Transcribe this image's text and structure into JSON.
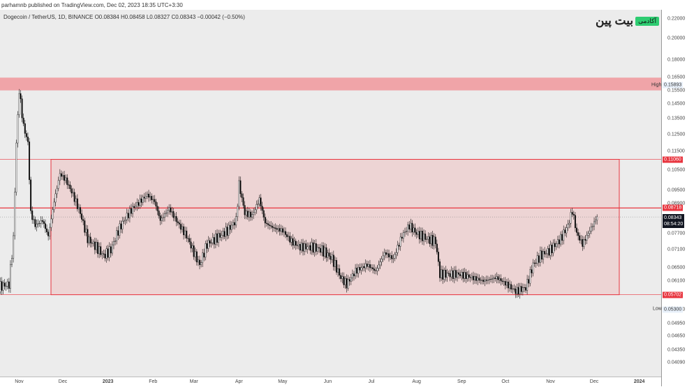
{
  "header": {
    "published": "parhamnb published on TradingView.com, Dec 02, 2023 18:35 UTC+3:30",
    "legend": "Dogecoin / TetherUS, 1D, BINANCE  O0.08384  H0.08458  L0.08327  C0.08343  −0.00042 (−0.50%)"
  },
  "logo": {
    "text": "بیت پین",
    "badge": "آکادمی"
  },
  "chart_data": {
    "type": "candlestick",
    "symbol": "DOGE/USDT",
    "interval": "1D",
    "scale": "log",
    "y_ticks": [
      "0.22000",
      "0.20000",
      "0.18000",
      "0.16500",
      "0.15500",
      "0.14500",
      "0.13500",
      "0.12500",
      "0.11500",
      "0.10500",
      "0.09500",
      "0.08900",
      "0.07700",
      "0.07100",
      "0.06500",
      "0.06100",
      "0.05300",
      "0.04950",
      "0.04650",
      "0.04350",
      "0.04090"
    ],
    "x_ticks": [
      "Nov",
      "Dec",
      "2023",
      "Feb",
      "Mar",
      "Apr",
      "May",
      "Jun",
      "Jul",
      "Aug",
      "Sep",
      "Oct",
      "Nov",
      "Dec",
      "2024"
    ],
    "x_tick_days": [
      17,
      47,
      78,
      109,
      137,
      168,
      198,
      229,
      259,
      290,
      321,
      351,
      382,
      412,
      443
    ],
    "start_date": "2022-10-15",
    "closes_day_price": [
      [
        0,
        0.059
      ],
      [
        10,
        0.06
      ],
      [
        13,
        0.075
      ],
      [
        15,
        0.12
      ],
      [
        17,
        0.155
      ],
      [
        20,
        0.13
      ],
      [
        23,
        0.12
      ],
      [
        25,
        0.085
      ],
      [
        28,
        0.08
      ],
      [
        33,
        0.082
      ],
      [
        37,
        0.076
      ],
      [
        41,
        0.09
      ],
      [
        45,
        0.103
      ],
      [
        49,
        0.1
      ],
      [
        54,
        0.093
      ],
      [
        59,
        0.085
      ],
      [
        64,
        0.075
      ],
      [
        70,
        0.072
      ],
      [
        75,
        0.069
      ],
      [
        80,
        0.071
      ],
      [
        85,
        0.078
      ],
      [
        90,
        0.083
      ],
      [
        95,
        0.087
      ],
      [
        100,
        0.09
      ],
      [
        105,
        0.093
      ],
      [
        110,
        0.09
      ],
      [
        114,
        0.082
      ],
      [
        120,
        0.087
      ],
      [
        126,
        0.081
      ],
      [
        132,
        0.076
      ],
      [
        138,
        0.069
      ],
      [
        141,
        0.066
      ],
      [
        146,
        0.073
      ],
      [
        152,
        0.075
      ],
      [
        160,
        0.078
      ],
      [
        166,
        0.082
      ],
      [
        168,
        0.098
      ],
      [
        172,
        0.085
      ],
      [
        177,
        0.084
      ],
      [
        182,
        0.091
      ],
      [
        186,
        0.081
      ],
      [
        192,
        0.079
      ],
      [
        198,
        0.078
      ],
      [
        204,
        0.074
      ],
      [
        210,
        0.072
      ],
      [
        218,
        0.072
      ],
      [
        225,
        0.071
      ],
      [
        232,
        0.068
      ],
      [
        238,
        0.062
      ],
      [
        242,
        0.06
      ],
      [
        248,
        0.064
      ],
      [
        256,
        0.066
      ],
      [
        262,
        0.064
      ],
      [
        268,
        0.07
      ],
      [
        274,
        0.068
      ],
      [
        280,
        0.076
      ],
      [
        285,
        0.08
      ],
      [
        290,
        0.077
      ],
      [
        297,
        0.075
      ],
      [
        303,
        0.074
      ],
      [
        306,
        0.063
      ],
      [
        312,
        0.063
      ],
      [
        320,
        0.063
      ],
      [
        328,
        0.062
      ],
      [
        336,
        0.061
      ],
      [
        345,
        0.062
      ],
      [
        352,
        0.06
      ],
      [
        358,
        0.058
      ],
      [
        365,
        0.059
      ],
      [
        370,
        0.066
      ],
      [
        375,
        0.069
      ],
      [
        382,
        0.071
      ],
      [
        389,
        0.075
      ],
      [
        394,
        0.08
      ],
      [
        397,
        0.086
      ],
      [
        400,
        0.077
      ],
      [
        404,
        0.073
      ],
      [
        408,
        0.077
      ],
      [
        414,
        0.08343
      ]
    ],
    "levels": {
      "high": "0.15893",
      "low": "0.05300",
      "resistance_top": "0.11060",
      "resistance_mid": "0.08718",
      "support": "0.05702",
      "current": "0.08343",
      "countdown": "08:54:20"
    },
    "high_label": "High",
    "low_label": "Low",
    "zones": [
      {
        "name": "supply-band",
        "from": 0.155,
        "to": 0.165
      },
      {
        "name": "range-box",
        "from": 0.05702,
        "to": 0.1106
      }
    ]
  }
}
